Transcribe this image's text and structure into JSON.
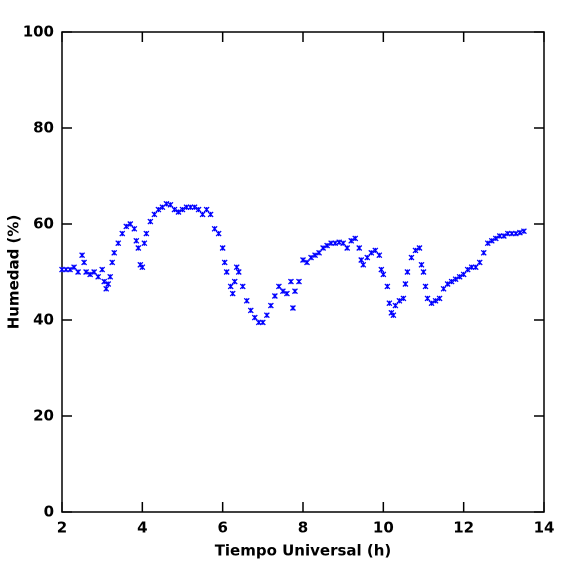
{
  "chart_data": {
    "type": "scatter",
    "xlabel": "Tiempo Universal (h)",
    "ylabel": "Humedad (%)",
    "xlim": [
      2,
      14
    ],
    "ylim": [
      0,
      100
    ],
    "xticks": [
      2,
      4,
      6,
      8,
      10,
      12,
      14
    ],
    "yticks": [
      0,
      20,
      40,
      60,
      80,
      100
    ],
    "color": "#0000ff",
    "x": [
      2.0,
      2.1,
      2.2,
      2.3,
      2.4,
      2.5,
      2.55,
      2.6,
      2.7,
      2.8,
      2.9,
      3.0,
      3.05,
      3.1,
      3.15,
      3.2,
      3.25,
      3.3,
      3.4,
      3.5,
      3.6,
      3.7,
      3.8,
      3.85,
      3.9,
      3.95,
      4.0,
      4.05,
      4.1,
      4.2,
      4.3,
      4.4,
      4.5,
      4.6,
      4.7,
      4.8,
      4.9,
      5.0,
      5.1,
      5.2,
      5.3,
      5.4,
      5.5,
      5.6,
      5.7,
      5.8,
      5.9,
      6.0,
      6.05,
      6.1,
      6.2,
      6.25,
      6.3,
      6.35,
      6.4,
      6.5,
      6.6,
      6.7,
      6.8,
      6.9,
      7.0,
      7.1,
      7.2,
      7.3,
      7.4,
      7.5,
      7.6,
      7.7,
      7.75,
      7.8,
      7.9,
      8.0,
      8.1,
      8.2,
      8.3,
      8.4,
      8.5,
      8.6,
      8.7,
      8.8,
      8.9,
      9.0,
      9.1,
      9.2,
      9.3,
      9.4,
      9.45,
      9.5,
      9.6,
      9.7,
      9.8,
      9.9,
      9.95,
      10.0,
      10.1,
      10.15,
      10.2,
      10.25,
      10.3,
      10.4,
      10.5,
      10.55,
      10.6,
      10.7,
      10.8,
      10.9,
      10.95,
      11.0,
      11.05,
      11.1,
      11.2,
      11.3,
      11.4,
      11.5,
      11.6,
      11.7,
      11.8,
      11.9,
      12.0,
      12.1,
      12.2,
      12.3,
      12.4,
      12.5,
      12.6,
      12.7,
      12.8,
      12.9,
      13.0,
      13.1,
      13.2,
      13.3,
      13.4,
      13.5
    ],
    "values": [
      50.5,
      50.5,
      50.5,
      51,
      50,
      53.5,
      52,
      50,
      49.5,
      50,
      49,
      50.5,
      48,
      46.5,
      47.5,
      49,
      52,
      54,
      56,
      58,
      59.5,
      60,
      59,
      56.5,
      55,
      51.5,
      51,
      56,
      58,
      60.5,
      62,
      63,
      63.5,
      64.2,
      64,
      63,
      62.5,
      63,
      63.5,
      63.5,
      63.5,
      63,
      62,
      63,
      62,
      59,
      58,
      55,
      52,
      50,
      47,
      45.5,
      48,
      51,
      50,
      47,
      44,
      42,
      40.5,
      39.5,
      39.5,
      41,
      43,
      45,
      47,
      46,
      45.5,
      48,
      42.5,
      46,
      48,
      52.5,
      52,
      53,
      53.5,
      54,
      55,
      55.5,
      56,
      56,
      56.2,
      56,
      55,
      56.5,
      57,
      55,
      52.5,
      51.5,
      53,
      54,
      54.5,
      53.5,
      50.5,
      49.5,
      47,
      43.5,
      41.5,
      41,
      43,
      44,
      44.5,
      47.5,
      50,
      53,
      54.5,
      55,
      51.5,
      50,
      47,
      44.5,
      43.5,
      44,
      44.5,
      46.5,
      47.5,
      48,
      48.5,
      49,
      49.5,
      50.5,
      51,
      51,
      52,
      54,
      56,
      56.5,
      57,
      57.5,
      57.5,
      58,
      58,
      58,
      58.2,
      58.5
    ]
  }
}
